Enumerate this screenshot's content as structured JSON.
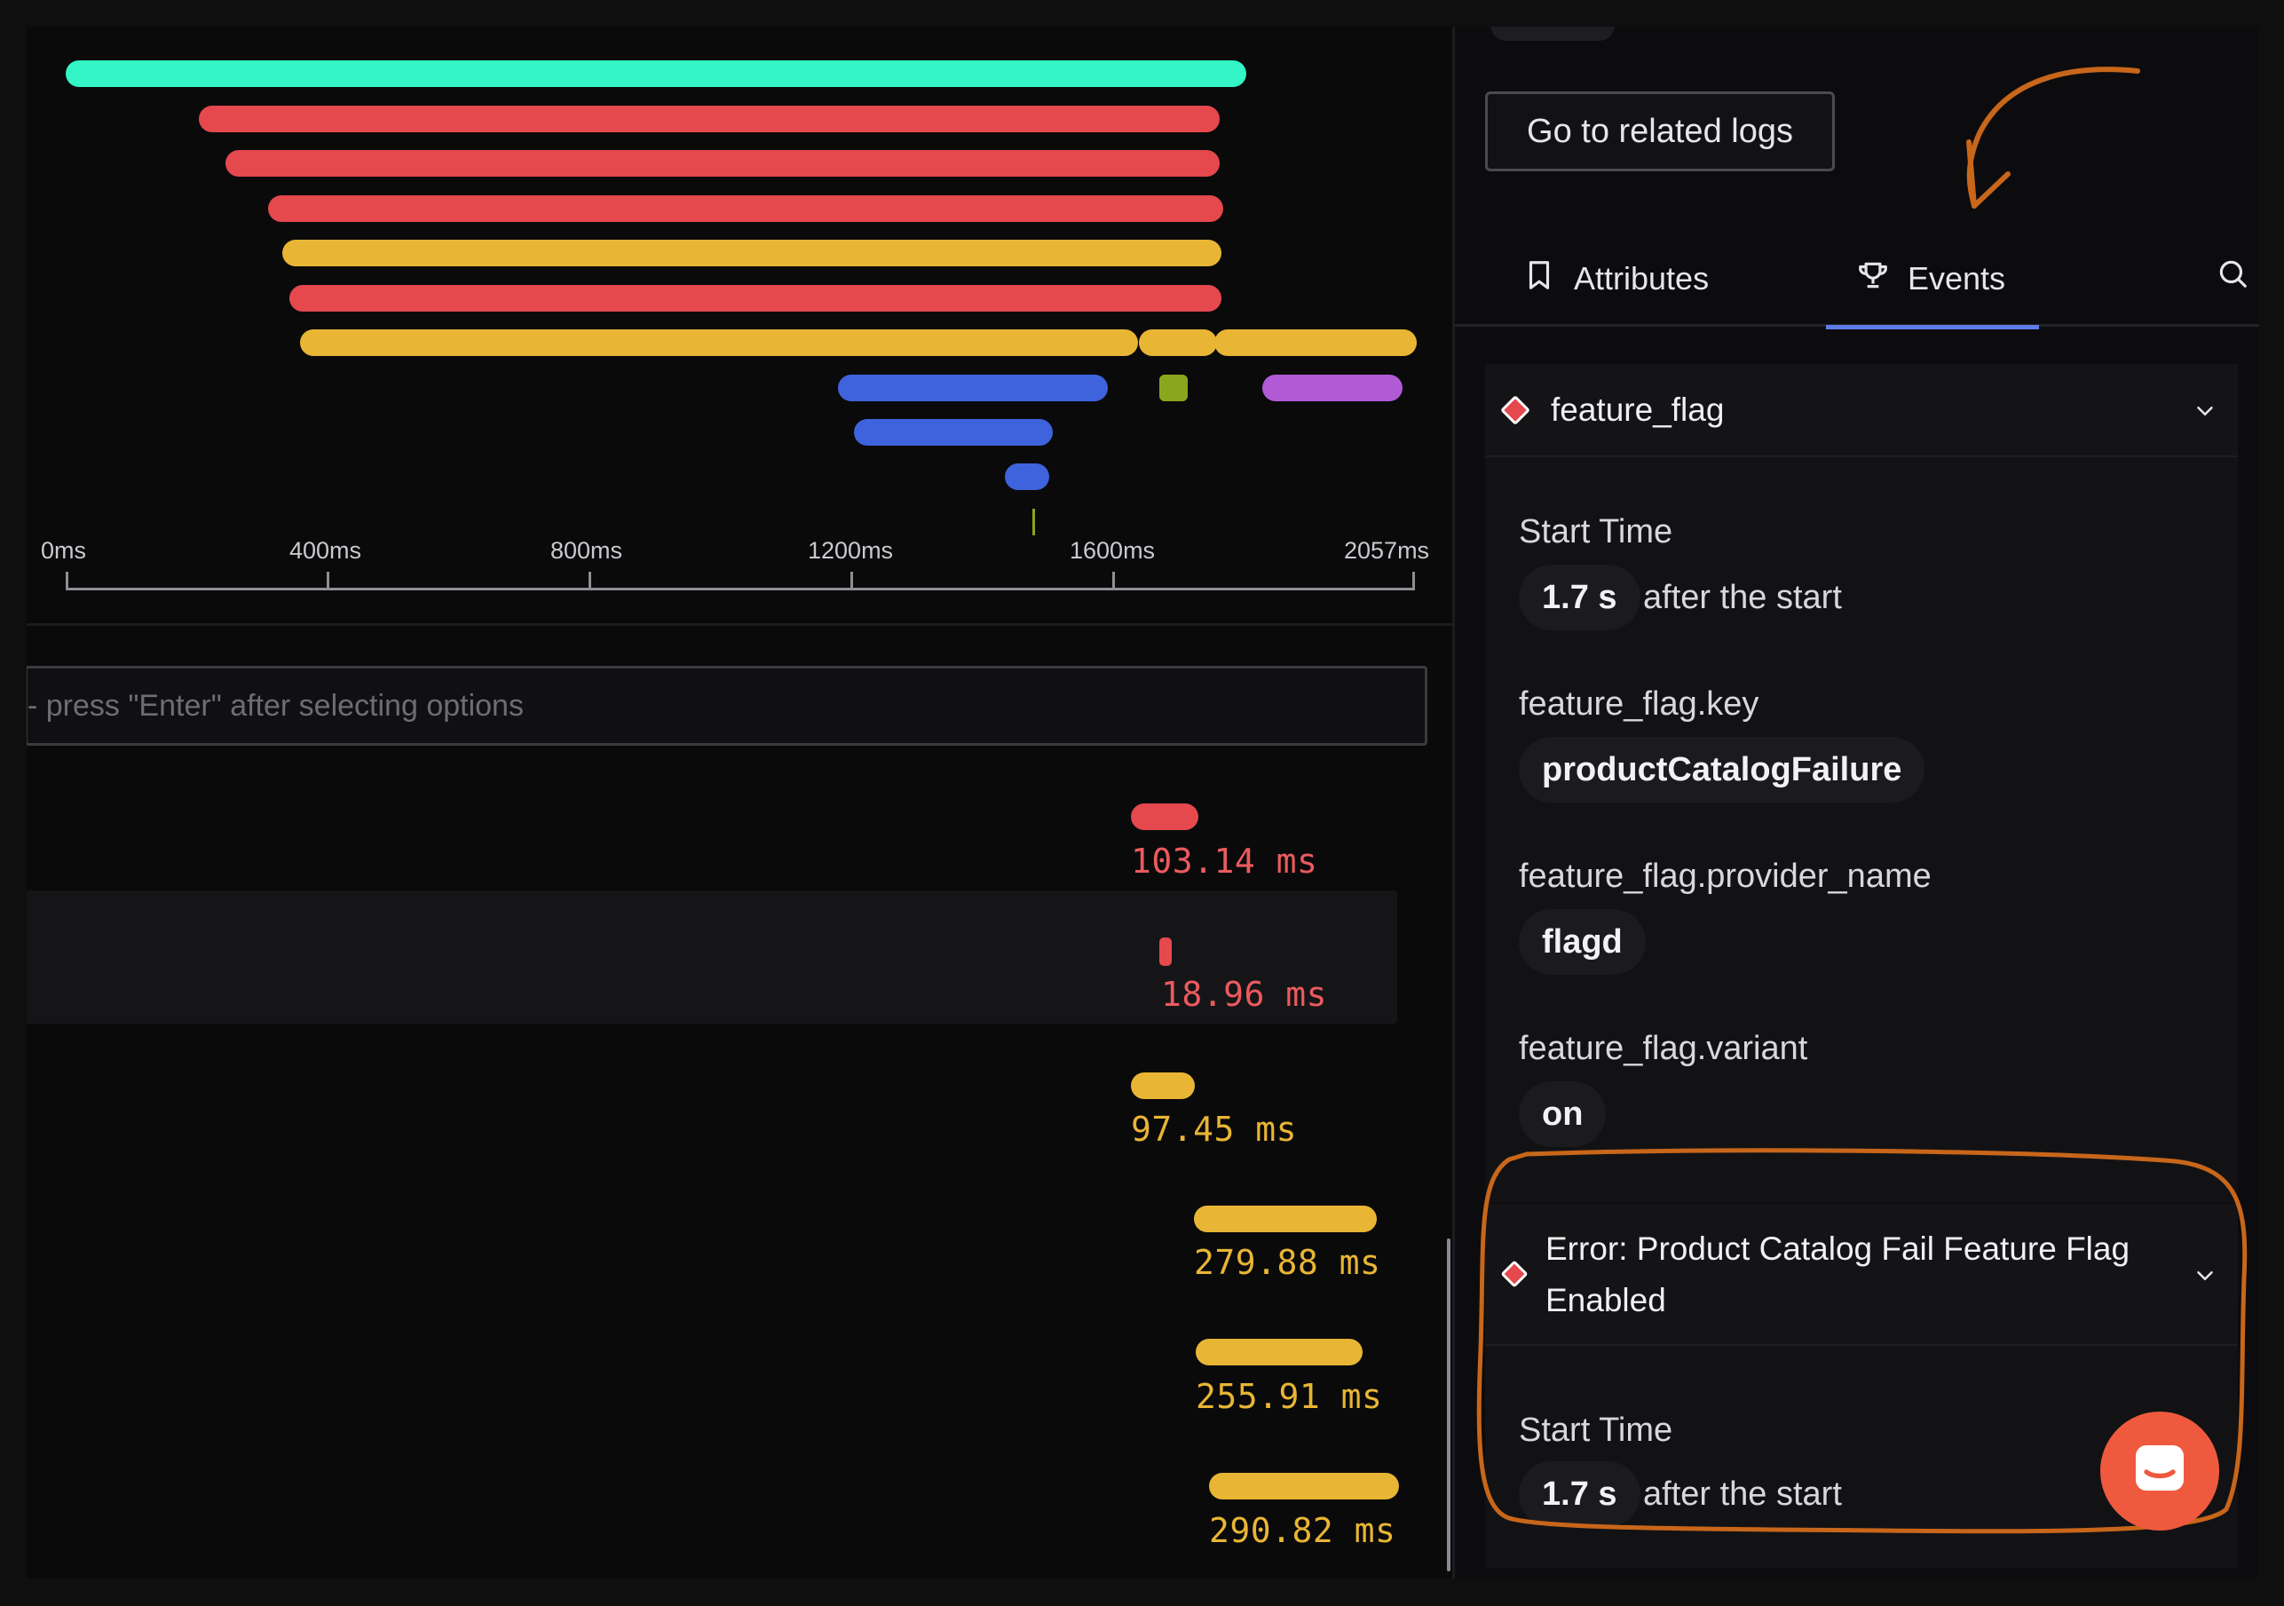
{
  "waterfall": {
    "axis_ticks": [
      "0ms",
      "400ms",
      "800ms",
      "1200ms",
      "1600ms",
      "2057ms"
    ],
    "bar_colors": {
      "root": "#34f5c5",
      "error": "#e5484d",
      "warn": "#e9b534",
      "info": "#3e63dd",
      "purple": "#b25ad6",
      "olive": "#89a61c"
    }
  },
  "filter": {
    "placeholder_visible": "- press \"Enter\" after selecting options"
  },
  "span_rows": [
    {
      "duration": "103.14 ms",
      "color": "#e5484d"
    },
    {
      "duration": "18.96 ms",
      "color": "#e5484d"
    },
    {
      "duration": "97.45 ms",
      "color": "#e9b534"
    },
    {
      "duration": "279.88 ms",
      "color": "#e9b534"
    },
    {
      "duration": "255.91 ms",
      "color": "#e9b534"
    },
    {
      "duration": "290.82 ms",
      "color": "#e9b534"
    }
  ],
  "details": {
    "related_logs_label": "Go to related logs",
    "tabs": [
      {
        "label": "Attributes",
        "icon": "bookmark-icon",
        "active": false
      },
      {
        "label": "Events",
        "icon": "trophy-icon",
        "active": true
      }
    ],
    "events": [
      {
        "name": "feature_flag",
        "start_time_label": "Start Time",
        "start_time_value": "1.7 s",
        "start_time_suffix": "after the start",
        "attributes": [
          {
            "key": "feature_flag.key",
            "value": "productCatalogFailure"
          },
          {
            "key": "feature_flag.provider_name",
            "value": "flagd"
          },
          {
            "key": "feature_flag.variant",
            "value": "on"
          }
        ]
      },
      {
        "name_line1": "Error: Product Catalog Fail Feature Flag",
        "name_line2": "Enabled",
        "start_time_label": "Start Time",
        "start_time_value": "1.7 s",
        "start_time_suffix": "after the start"
      }
    ]
  },
  "annotation_color": "#c8661a",
  "accent_color": "#5f7de8"
}
